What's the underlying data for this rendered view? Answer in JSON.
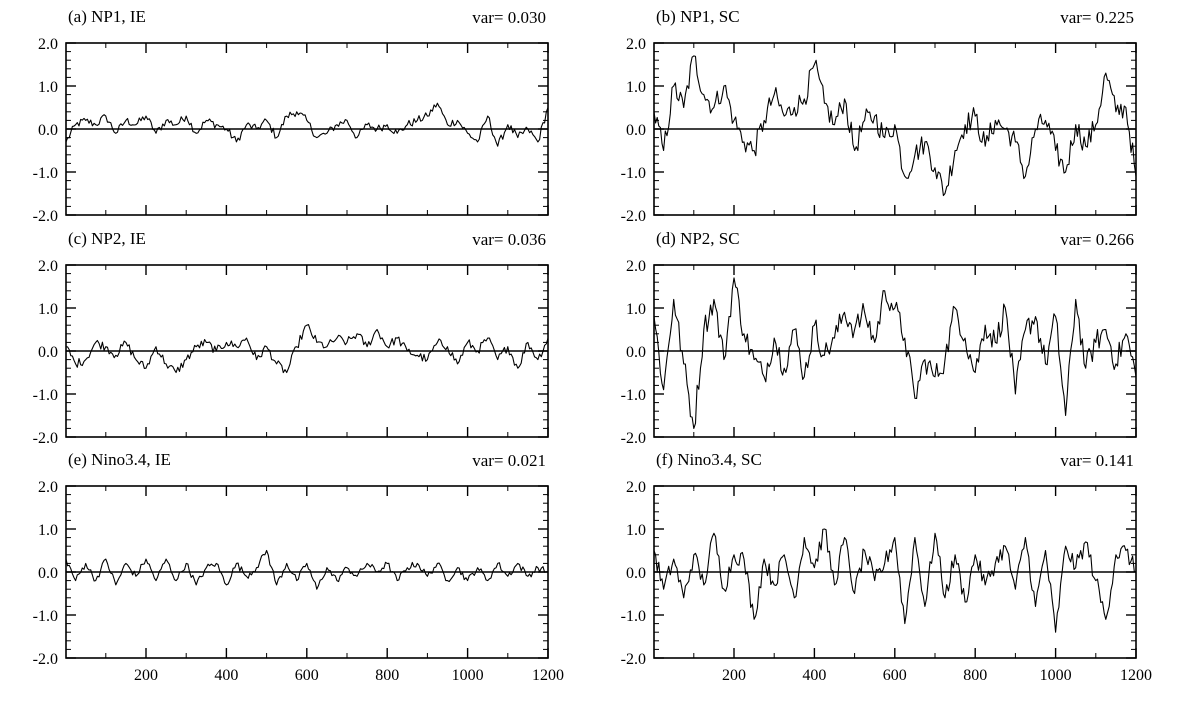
{
  "figure": {
    "panels": [
      {
        "id": "a",
        "title": "(a) NP1, IE",
        "var_label": "var=  0.030"
      },
      {
        "id": "b",
        "title": "(b) NP1, SC",
        "var_label": "var=  0.225"
      },
      {
        "id": "c",
        "title": "(c) NP2, IE",
        "var_label": "var=  0.036"
      },
      {
        "id": "d",
        "title": "(d) NP2, SC",
        "var_label": "var=  0.266"
      },
      {
        "id": "e",
        "title": "(e) Nino3.4, IE",
        "var_label": "var=  0.021"
      },
      {
        "id": "f",
        "title": "(f) Nino3.4, SC",
        "var_label": "var=  0.141"
      }
    ]
  },
  "chart_data": [
    {
      "type": "line",
      "title": "(a) NP1, IE",
      "annotation": "var=  0.030",
      "xlim": [
        1,
        1200
      ],
      "ylim": [
        -2.0,
        2.0
      ],
      "xticks": [
        200,
        400,
        600,
        800,
        1000,
        1200
      ],
      "yticks": [
        "2.0",
        "1.0",
        "0.0",
        "-1.0",
        "-2.0"
      ],
      "zero_line": true,
      "variance": 0.03,
      "grid": false,
      "x": [
        1,
        25,
        50,
        75,
        100,
        125,
        150,
        175,
        200,
        225,
        250,
        275,
        300,
        325,
        350,
        375,
        400,
        425,
        450,
        475,
        500,
        525,
        550,
        575,
        600,
        625,
        650,
        675,
        700,
        725,
        750,
        775,
        800,
        825,
        850,
        875,
        900,
        925,
        950,
        975,
        1000,
        1025,
        1050,
        1075,
        1100,
        1125,
        1150,
        1175,
        1200
      ],
      "y": [
        -0.3,
        0.1,
        0.2,
        0.1,
        0.3,
        -0.1,
        0.2,
        0.1,
        0.3,
        -0.1,
        0.2,
        0.1,
        0.3,
        -0.1,
        0.2,
        0.1,
        0.0,
        -0.3,
        0.1,
        0.0,
        0.2,
        -0.2,
        0.3,
        0.4,
        0.2,
        -0.2,
        -0.1,
        0.1,
        0.2,
        -0.2,
        0.1,
        0.0,
        0.1,
        -0.1,
        0.1,
        0.2,
        0.3,
        0.6,
        0.1,
        0.2,
        -0.1,
        -0.3,
        0.3,
        -0.4,
        0.1,
        -0.2,
        0.0,
        -0.3,
        0.5
      ]
    },
    {
      "type": "line",
      "title": "(b) NP1, SC",
      "annotation": "var=  0.225",
      "xlim": [
        1,
        1200
      ],
      "ylim": [
        -2.0,
        2.0
      ],
      "xticks": [
        200,
        400,
        600,
        800,
        1000,
        1200
      ],
      "yticks": [
        "2.0",
        "1.0",
        "0.0",
        "-1.0",
        "-2.0"
      ],
      "zero_line": true,
      "variance": 0.225,
      "grid": false,
      "x": [
        1,
        25,
        50,
        75,
        100,
        125,
        150,
        175,
        200,
        225,
        250,
        275,
        300,
        325,
        350,
        375,
        400,
        425,
        450,
        475,
        500,
        525,
        550,
        575,
        600,
        625,
        650,
        675,
        700,
        725,
        750,
        775,
        800,
        825,
        850,
        875,
        900,
        925,
        950,
        975,
        1000,
        1025,
        1050,
        1075,
        1100,
        1125,
        1150,
        1175,
        1200
      ],
      "y": [
        0.4,
        -0.5,
        1.0,
        0.5,
        1.7,
        0.8,
        0.5,
        1.0,
        0.2,
        -0.3,
        -0.5,
        0.2,
        0.8,
        0.3,
        0.5,
        0.7,
        1.5,
        0.6,
        0.1,
        0.7,
        -0.5,
        0.2,
        0.3,
        -0.2,
        0.1,
        -1.1,
        -0.6,
        -0.3,
        -0.9,
        -1.5,
        -0.5,
        0.1,
        0.3,
        -0.4,
        0.2,
        0.0,
        -0.3,
        -1.1,
        0.0,
        0.2,
        -0.5,
        -1.0,
        0.1,
        -0.4,
        0.1,
        1.3,
        0.4,
        0.5,
        -1.1
      ]
    },
    {
      "type": "line",
      "title": "(c) NP2, IE",
      "annotation": "var=  0.036",
      "xlim": [
        1,
        1200
      ],
      "ylim": [
        -2.0,
        2.0
      ],
      "xticks": [
        200,
        400,
        600,
        800,
        1000,
        1200
      ],
      "yticks": [
        "2.0",
        "1.0",
        "0.0",
        "-1.0",
        "-2.0"
      ],
      "zero_line": true,
      "variance": 0.036,
      "grid": false,
      "x": [
        1,
        25,
        50,
        75,
        100,
        125,
        150,
        175,
        200,
        225,
        250,
        275,
        300,
        325,
        350,
        375,
        400,
        425,
        450,
        475,
        500,
        525,
        550,
        575,
        600,
        625,
        650,
        675,
        700,
        725,
        750,
        775,
        800,
        825,
        850,
        875,
        900,
        925,
        950,
        975,
        1000,
        1025,
        1050,
        1075,
        1100,
        1125,
        1150,
        1175,
        1200
      ],
      "y": [
        0.1,
        -0.3,
        -0.2,
        0.2,
        0.1,
        -0.1,
        0.2,
        -0.2,
        -0.4,
        0.1,
        -0.3,
        -0.5,
        -0.2,
        0.1,
        0.2,
        0.0,
        0.2,
        0.1,
        0.3,
        -0.2,
        0.1,
        -0.3,
        -0.5,
        0.1,
        0.6,
        0.2,
        0.1,
        0.3,
        0.2,
        0.4,
        0.1,
        0.5,
        0.1,
        0.3,
        0.0,
        -0.1,
        -0.2,
        0.2,
        0.1,
        -0.3,
        0.2,
        0.0,
        0.3,
        -0.2,
        0.1,
        -0.4,
        0.2,
        -0.2,
        0.3
      ]
    },
    {
      "type": "line",
      "title": "(d) NP2, SC",
      "annotation": "var=  0.266",
      "xlim": [
        1,
        1200
      ],
      "ylim": [
        -2.0,
        2.0
      ],
      "xticks": [
        200,
        400,
        600,
        800,
        1000,
        1200
      ],
      "yticks": [
        "2.0",
        "1.0",
        "0.0",
        "-1.0",
        "-2.0"
      ],
      "zero_line": true,
      "variance": 0.266,
      "grid": false,
      "x": [
        1,
        25,
        50,
        75,
        100,
        125,
        150,
        175,
        200,
        225,
        250,
        275,
        300,
        325,
        350,
        375,
        400,
        425,
        450,
        475,
        500,
        525,
        550,
        575,
        600,
        625,
        650,
        675,
        700,
        725,
        750,
        775,
        800,
        825,
        850,
        875,
        900,
        925,
        950,
        975,
        1000,
        1025,
        1050,
        1075,
        1100,
        1125,
        1150,
        1175,
        1200
      ],
      "y": [
        0.8,
        -0.9,
        1.2,
        -0.3,
        -1.8,
        0.5,
        1.2,
        -0.2,
        1.7,
        0.4,
        -0.2,
        -0.6,
        0.3,
        -0.4,
        0.5,
        -0.6,
        0.6,
        -0.1,
        0.3,
        0.9,
        0.5,
        0.9,
        0.2,
        1.4,
        1.0,
        0.3,
        -1.1,
        -0.2,
        -0.6,
        -0.2,
        1.0,
        0.3,
        -0.5,
        0.6,
        0.2,
        1.0,
        -1.0,
        0.5,
        0.8,
        -0.3,
        0.8,
        -1.5,
        1.2,
        -0.4,
        0.2,
        0.5,
        -0.3,
        0.4,
        -0.6
      ]
    },
    {
      "type": "line",
      "title": "(e) Nino3.4, IE",
      "annotation": "var=  0.021",
      "xlim": [
        1,
        1200
      ],
      "ylim": [
        -2.0,
        2.0
      ],
      "xticks": [
        200,
        400,
        600,
        800,
        1000,
        1200
      ],
      "yticks": [
        "2.0",
        "1.0",
        "0.0",
        "-1.0",
        "-2.0"
      ],
      "zero_line": true,
      "variance": 0.021,
      "grid": false,
      "x": [
        1,
        25,
        50,
        75,
        100,
        125,
        150,
        175,
        200,
        225,
        250,
        275,
        300,
        325,
        350,
        375,
        400,
        425,
        450,
        475,
        500,
        525,
        550,
        575,
        600,
        625,
        650,
        675,
        700,
        725,
        750,
        775,
        800,
        825,
        850,
        875,
        900,
        925,
        950,
        975,
        1000,
        1025,
        1050,
        1075,
        1100,
        1125,
        1150,
        1175,
        1200
      ],
      "y": [
        0.3,
        -0.2,
        0.2,
        -0.2,
        0.3,
        -0.3,
        0.2,
        -0.1,
        0.3,
        -0.2,
        0.3,
        -0.2,
        0.2,
        -0.3,
        0.1,
        0.2,
        -0.3,
        0.2,
        -0.1,
        0.1,
        0.5,
        -0.3,
        0.2,
        -0.2,
        0.2,
        -0.4,
        0.1,
        -0.2,
        0.1,
        -0.1,
        0.2,
        0.0,
        0.2,
        -0.2,
        0.1,
        0.2,
        -0.1,
        0.2,
        -0.2,
        0.1,
        -0.2,
        0.1,
        -0.2,
        0.2,
        -0.1,
        0.2,
        -0.1,
        0.1,
        0.0
      ]
    },
    {
      "type": "line",
      "title": "(f) Nino3.4, SC",
      "annotation": "var=  0.141",
      "xlim": [
        1,
        1200
      ],
      "ylim": [
        -2.0,
        2.0
      ],
      "xticks": [
        200,
        400,
        600,
        800,
        1000,
        1200
      ],
      "yticks": [
        "2.0",
        "1.0",
        "0.0",
        "-1.0",
        "-2.0"
      ],
      "zero_line": true,
      "variance": 0.141,
      "grid": false,
      "x": [
        1,
        25,
        50,
        75,
        100,
        125,
        150,
        175,
        200,
        225,
        250,
        275,
        300,
        325,
        350,
        375,
        400,
        425,
        450,
        475,
        500,
        525,
        550,
        575,
        600,
        625,
        650,
        675,
        700,
        725,
        750,
        775,
        800,
        825,
        850,
        875,
        900,
        925,
        950,
        975,
        1000,
        1025,
        1050,
        1075,
        1100,
        1125,
        1150,
        1175,
        1200
      ],
      "y": [
        0.5,
        -0.4,
        0.3,
        -0.6,
        0.4,
        -0.3,
        0.9,
        -0.4,
        0.4,
        0.3,
        -1.1,
        0.3,
        -0.3,
        0.4,
        -0.6,
        0.8,
        0.1,
        1.0,
        -0.3,
        0.8,
        -0.5,
        0.5,
        -0.2,
        0.2,
        0.8,
        -1.2,
        0.8,
        -0.8,
        0.9,
        -0.6,
        0.4,
        -0.7,
        0.4,
        -0.3,
        0.2,
        0.6,
        -0.4,
        0.8,
        -0.8,
        0.5,
        -1.4,
        0.6,
        0.1,
        0.7,
        -0.2,
        -1.1,
        0.4,
        0.5,
        0.0
      ]
    }
  ]
}
